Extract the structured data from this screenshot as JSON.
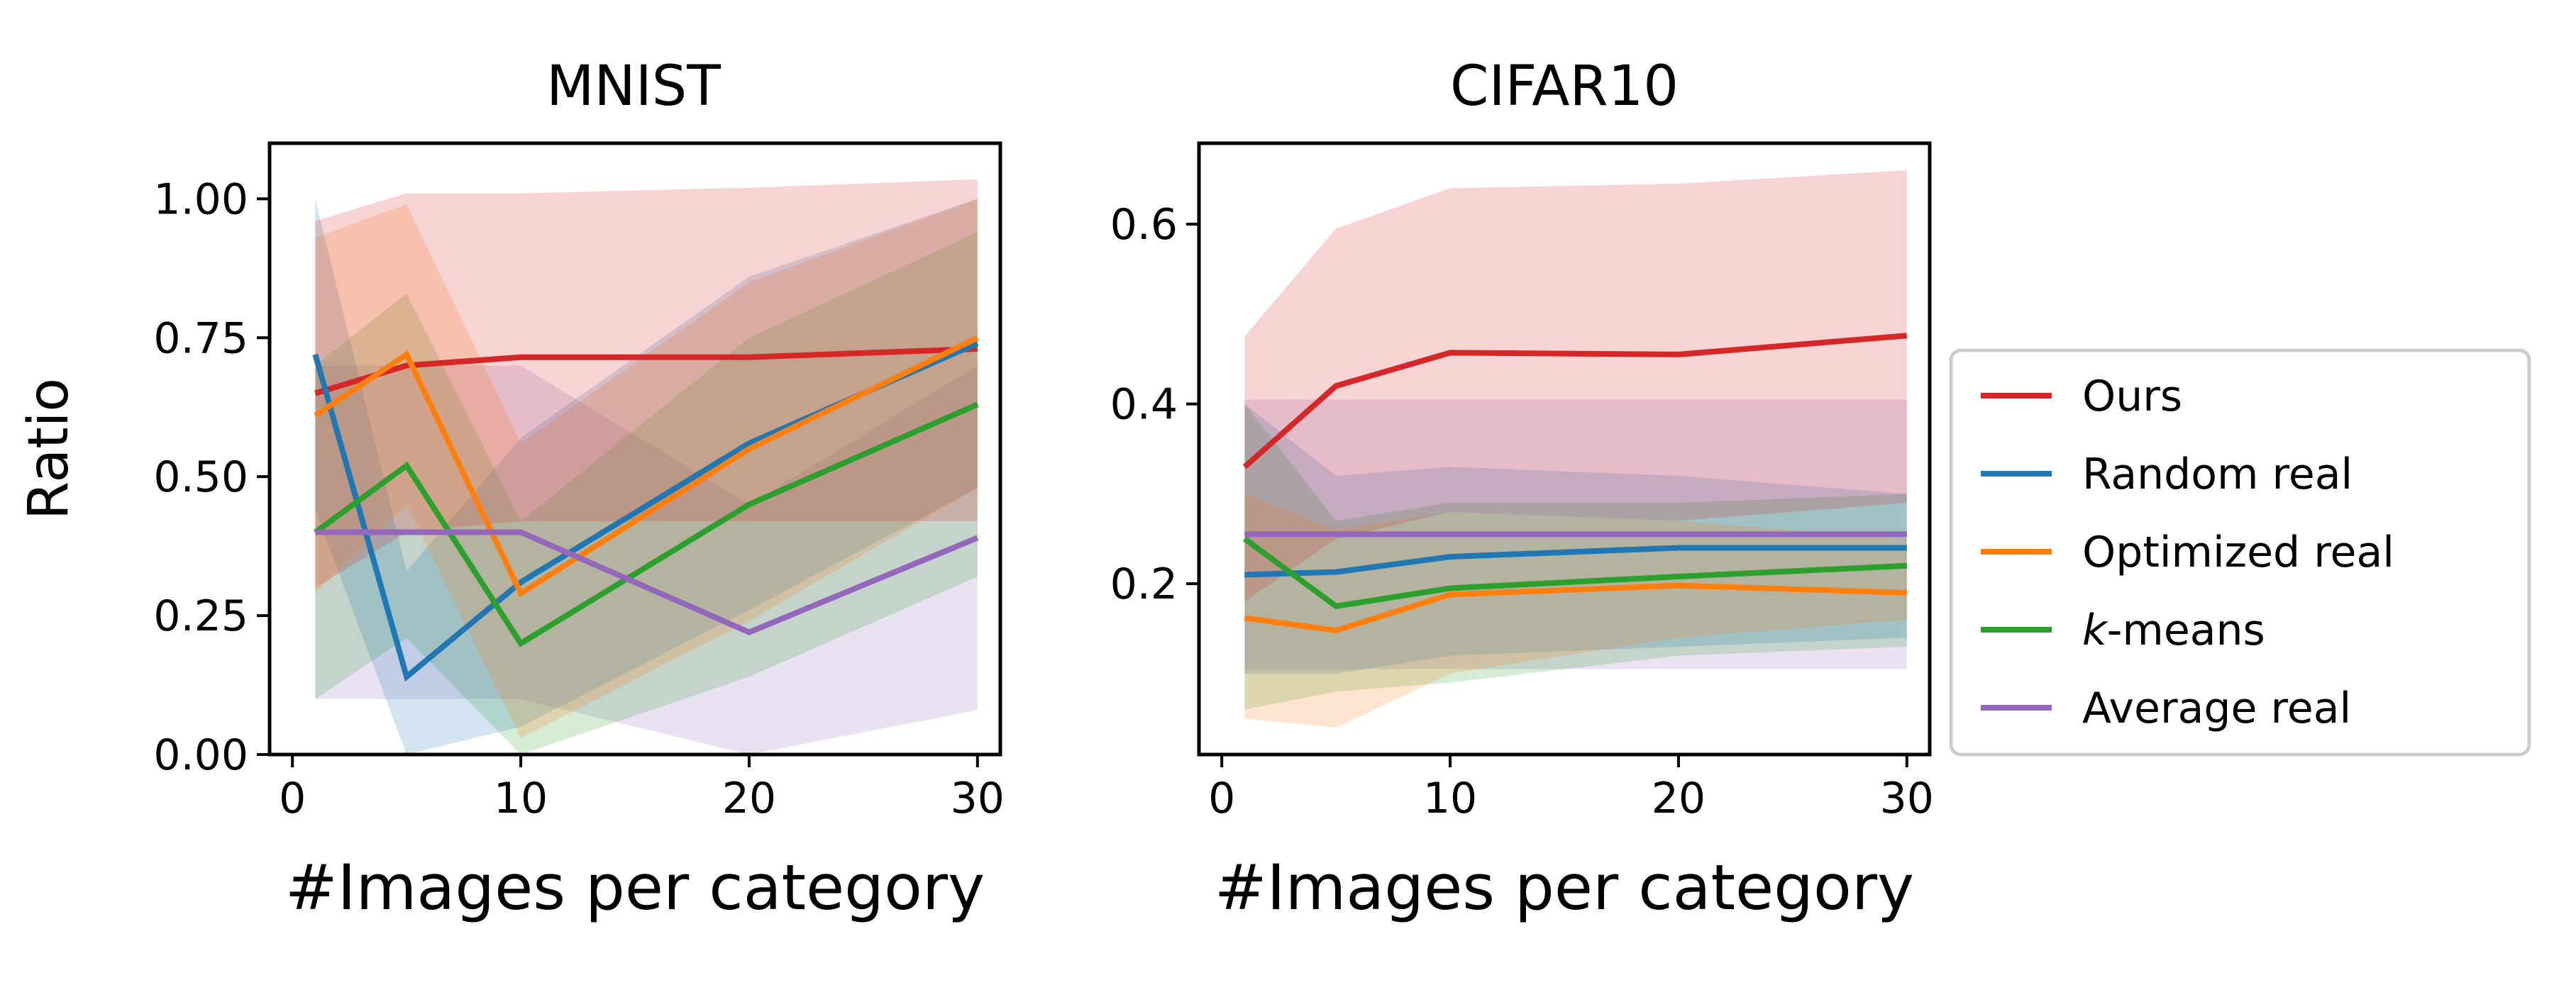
{
  "chart_data": [
    {
      "type": "line",
      "title": "MNIST",
      "xlabel": "#Images per category",
      "ylabel": "Ratio",
      "x": [
        1,
        5,
        10,
        20,
        30
      ],
      "xlim": [
        -1,
        31
      ],
      "ylim": [
        0,
        1.1
      ],
      "xticks": [
        0,
        10,
        20,
        30
      ],
      "yticks": [
        0.0,
        0.25,
        0.5,
        0.75,
        1.0
      ],
      "xtick_labels": [
        "0",
        "10",
        "20",
        "30"
      ],
      "ytick_labels": [
        "0.00",
        "0.25",
        "0.50",
        "0.75",
        "1.00"
      ],
      "series": [
        {
          "name": "Ours",
          "color": "#d62728",
          "values": [
            0.65,
            0.7,
            0.715,
            0.715,
            0.73
          ],
          "lower": [
            0.3,
            0.4,
            0.42,
            0.42,
            0.42
          ],
          "upper": [
            0.96,
            1.01,
            1.01,
            1.02,
            1.035
          ]
        },
        {
          "name": "Random real",
          "color": "#1f77b4",
          "values": [
            0.72,
            0.14,
            0.31,
            0.56,
            0.74
          ],
          "lower": [
            0.44,
            0.0,
            0.05,
            0.26,
            0.48
          ],
          "upper": [
            1.0,
            0.33,
            0.57,
            0.86,
            1.0
          ]
        },
        {
          "name": "Optimized real",
          "color": "#ff7f0e",
          "values": [
            0.61,
            0.72,
            0.29,
            0.55,
            0.75
          ],
          "lower": [
            0.29,
            0.45,
            0.03,
            0.24,
            0.48
          ],
          "upper": [
            0.93,
            0.99,
            0.56,
            0.85,
            1.0
          ]
        },
        {
          "name": "k-means",
          "color": "#2ca02c",
          "values": [
            0.4,
            0.52,
            0.2,
            0.45,
            0.63
          ],
          "lower": [
            0.1,
            0.21,
            0.0,
            0.14,
            0.32
          ],
          "upper": [
            0.7,
            0.83,
            0.42,
            0.75,
            0.94
          ]
        },
        {
          "name": "Average real",
          "color": "#9467bd",
          "values": [
            0.4,
            0.4,
            0.4,
            0.22,
            0.39
          ],
          "lower": [
            0.1,
            0.1,
            0.1,
            0.0,
            0.08
          ],
          "upper": [
            0.7,
            0.7,
            0.7,
            0.45,
            0.7
          ]
        }
      ]
    },
    {
      "type": "line",
      "title": "CIFAR10",
      "xlabel": "#Images per category",
      "ylabel": "",
      "x": [
        1,
        5,
        10,
        20,
        30
      ],
      "xlim": [
        -1,
        31
      ],
      "ylim": [
        0.01,
        0.69
      ],
      "xticks": [
        0,
        10,
        20,
        30
      ],
      "yticks": [
        0.2,
        0.4,
        0.6
      ],
      "xtick_labels": [
        "0",
        "10",
        "20",
        "30"
      ],
      "ytick_labels": [
        "0.2",
        "0.4",
        "0.6"
      ],
      "series": [
        {
          "name": "Ours",
          "color": "#d62728",
          "values": [
            0.33,
            0.42,
            0.457,
            0.455,
            0.476
          ],
          "lower": [
            0.18,
            0.25,
            0.28,
            0.27,
            0.29
          ],
          "upper": [
            0.475,
            0.595,
            0.64,
            0.645,
            0.66
          ]
        },
        {
          "name": "Random real",
          "color": "#1f77b4",
          "values": [
            0.21,
            0.213,
            0.23,
            0.24,
            0.24
          ],
          "lower": [
            0.1,
            0.1,
            0.12,
            0.13,
            0.14
          ],
          "upper": [
            0.4,
            0.32,
            0.33,
            0.32,
            0.3
          ]
        },
        {
          "name": "Optimized real",
          "color": "#ff7f0e",
          "values": [
            0.162,
            0.148,
            0.188,
            0.198,
            0.19
          ],
          "lower": [
            0.05,
            0.04,
            0.1,
            0.14,
            0.16
          ],
          "upper": [
            0.3,
            0.26,
            0.28,
            0.27,
            0.25
          ]
        },
        {
          "name": "k-means",
          "color": "#2ca02c",
          "values": [
            0.25,
            0.175,
            0.195,
            0.208,
            0.22
          ],
          "lower": [
            0.06,
            0.08,
            0.09,
            0.12,
            0.13
          ],
          "upper": [
            0.4,
            0.27,
            0.29,
            0.29,
            0.3
          ]
        },
        {
          "name": "Average real",
          "color": "#9467bd",
          "values": [
            0.255,
            0.255,
            0.255,
            0.255,
            0.255
          ],
          "lower": [
            0.105,
            0.105,
            0.105,
            0.105,
            0.105
          ],
          "upper": [
            0.405,
            0.405,
            0.405,
            0.405,
            0.405
          ]
        }
      ]
    }
  ],
  "legend": {
    "placement": "right",
    "entries": [
      {
        "label": "Ours",
        "color": "#d62728"
      },
      {
        "label": "Random real",
        "color": "#1f77b4"
      },
      {
        "label": "Optimized real",
        "color": "#ff7f0e"
      },
      {
        "label": "-means",
        "italic_prefix": "k",
        "color": "#2ca02c"
      },
      {
        "label": "Average real",
        "color": "#9467bd"
      }
    ]
  }
}
